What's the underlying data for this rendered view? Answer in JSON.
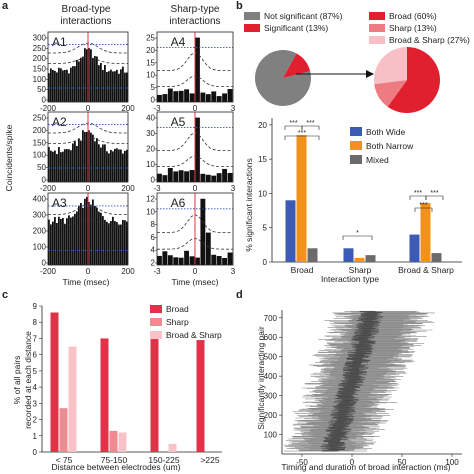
{
  "panel_labels": {
    "a": "a",
    "b": "b",
    "c": "c",
    "d": "d"
  },
  "panel_a": {
    "header_broad": [
      "Broad-type",
      "interactions"
    ],
    "header_sharp": [
      "Sharp-type",
      "interactions"
    ],
    "ylabel": "Coincidents/spike",
    "xlabel": "Time (msec)",
    "broad_xticks": [
      "-200",
      "0",
      "200"
    ],
    "sharp_xticks": [
      "-3",
      "0",
      "3"
    ],
    "subplots": [
      {
        "id": "A1",
        "yticks": [
          "300",
          "250",
          "200",
          "150",
          "100",
          "50",
          "0"
        ]
      },
      {
        "id": "A2",
        "yticks": [
          "250",
          "200",
          "150",
          "100",
          "50",
          "0"
        ]
      },
      {
        "id": "A3",
        "yticks": [
          "400",
          "300",
          "200",
          "100",
          "0"
        ]
      },
      {
        "id": "A4",
        "yticks": [
          "25",
          "20",
          "15",
          "10",
          "5",
          "0"
        ]
      },
      {
        "id": "A5",
        "yticks": [
          "40",
          "30",
          "20",
          "10",
          "0"
        ]
      },
      {
        "id": "A6",
        "yticks": [
          "12",
          "10",
          "8",
          "6",
          "4",
          "2"
        ]
      }
    ],
    "colors": {
      "bars": "#111111",
      "zero_line": "#e0334a",
      "band": "#333333",
      "threshold": "#2a52be"
    }
  },
  "panel_b": {
    "pie1_legend": [
      {
        "label": "Not significant (87%)",
        "color": "#808080"
      },
      {
        "label": "Significant (13%)",
        "color": "#e0202e"
      }
    ],
    "pie2_legend": [
      {
        "label": "Broad (60%)",
        "color": "#e0202e"
      },
      {
        "label": "Sharp (13%)",
        "color": "#ee7a82"
      },
      {
        "label": "Broad & Sharp (27%)",
        "color": "#f6c0c6"
      }
    ],
    "pie1_fractions": [
      0.87,
      0.13
    ],
    "pie2_fractions": [
      0.6,
      0.13,
      0.27
    ],
    "bar_legend": [
      {
        "label": "Both Wide",
        "color": "#3b5bb5"
      },
      {
        "label": "Both Narrow",
        "color": "#f0921c"
      },
      {
        "label": "Mixed",
        "color": "#6b6b6b"
      }
    ],
    "ylabel": "% significant interactions",
    "xlabel": "Interaction type",
    "yticks": [
      "0",
      "5",
      "10",
      "15",
      "20"
    ],
    "sig_marks": {
      "broad": [
        "***",
        "***",
        "***"
      ],
      "sharp": [
        "*"
      ],
      "broad_sharp": [
        "***",
        "***",
        "***"
      ]
    }
  },
  "panel_c": {
    "ylabel": [
      "% of all pairs",
      "recorded at each distance"
    ],
    "xlabel": "Distance between electrodes (um)",
    "legend": [
      {
        "label": "Broad",
        "color": "#e0334a"
      },
      {
        "label": "Sharp",
        "color": "#ef8a92"
      },
      {
        "label": "Broad & Sharp",
        "color": "#f7c3c8"
      }
    ],
    "yticks": [
      "0",
      "1",
      "2",
      "3",
      "4",
      "5",
      "6",
      "7",
      "8",
      "9"
    ]
  },
  "panel_d": {
    "ylabel": "Significantly interacting pair",
    "xlabel": "Timing and duration of broad interaction (ms)",
    "xticks": [
      "-50",
      "0",
      "50",
      "100"
    ],
    "yticks": [
      "100",
      "200",
      "300",
      "400",
      "500",
      "600",
      "700"
    ]
  },
  "chart_data": [
    {
      "type": "bar",
      "title": "",
      "xlabel": "Interaction type",
      "ylabel": "% significant interactions",
      "categories": [
        "Broad",
        "Sharp",
        "Broad & Sharp"
      ],
      "series": [
        {
          "name": "Both Wide",
          "values": [
            9,
            2,
            4
          ]
        },
        {
          "name": "Both Narrow",
          "values": [
            18.5,
            0.6,
            8.6
          ]
        },
        {
          "name": "Mixed",
          "values": [
            2,
            1,
            1.3
          ]
        }
      ],
      "ylim": [
        0,
        21
      ]
    },
    {
      "type": "bar",
      "title": "",
      "xlabel": "Distance between electrodes (um)",
      "ylabel": "% of all pairs recorded at each distance",
      "categories": [
        "< 75",
        "75-150",
        "150-225",
        ">225"
      ],
      "series": [
        {
          "name": "Broad",
          "values": [
            8.6,
            7.0,
            7.0,
            6.9
          ]
        },
        {
          "name": "Sharp",
          "values": [
            2.7,
            1.3,
            0,
            0
          ]
        },
        {
          "name": "Broad & Sharp",
          "values": [
            6.5,
            1.2,
            0.5,
            0
          ]
        }
      ],
      "ylim": [
        0,
        9
      ]
    }
  ]
}
